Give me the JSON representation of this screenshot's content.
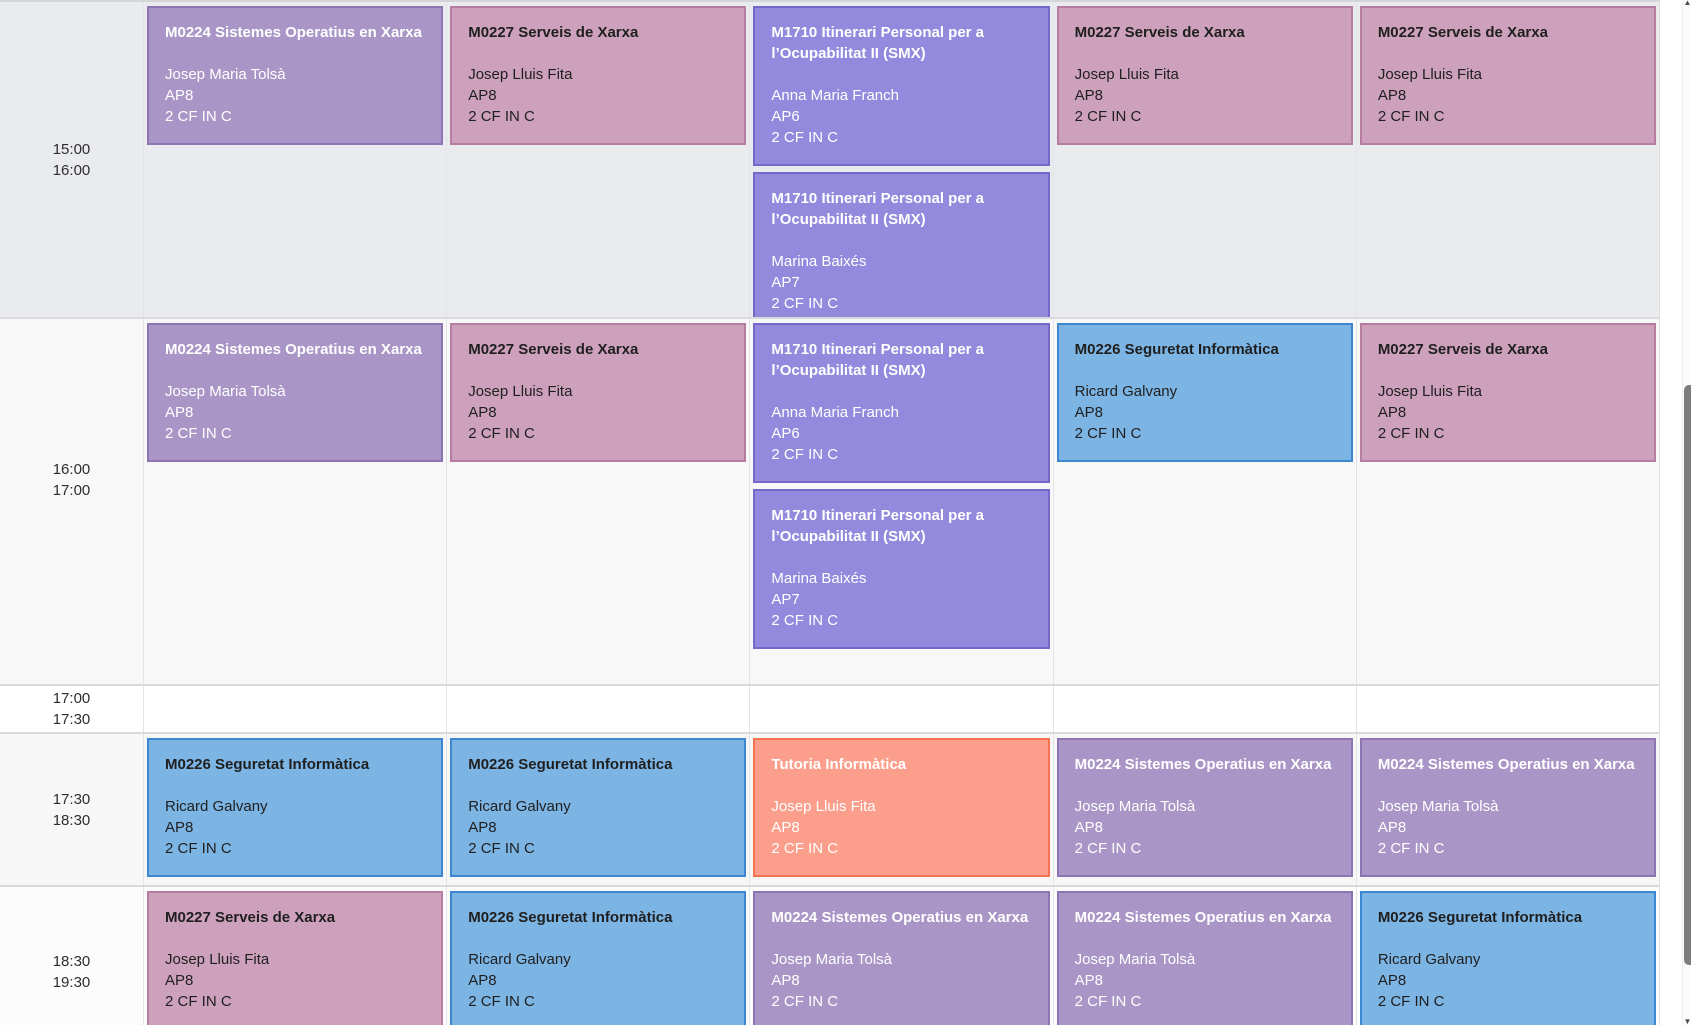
{
  "grid": {
    "rows": [
      {
        "start_time": "15:00",
        "end_time": "16:00",
        "bg": "#e9ebee",
        "columns": [
          [
            {
              "title": "M0224 Sistemes Operatius en Xarxa",
              "teacher": "Josep Maria Tolsà",
              "room": "AP8",
              "group": "2 CF IN C",
              "color": "purple"
            }
          ],
          [
            {
              "title": "M0227 Serveis de Xarxa",
              "teacher": "Josep Lluis Fita",
              "room": "AP8",
              "group": "2 CF IN C",
              "color": "pink"
            }
          ],
          [
            {
              "title": "M1710 Itinerari Personal per a l’Ocupabilitat II (SMX)",
              "teacher": "Anna Maria Franch",
              "room": "AP6",
              "group": "2 CF IN C",
              "color": "violet"
            },
            {
              "title": "M1710 Itinerari Personal per a l’Ocupabilitat II (SMX)",
              "teacher": "Marina Baixés",
              "room": "AP7",
              "group": "2 CF IN C",
              "color": "violet"
            }
          ],
          [
            {
              "title": "M0227 Serveis de Xarxa",
              "teacher": "Josep Lluis Fita",
              "room": "AP8",
              "group": "2 CF IN C",
              "color": "pink"
            }
          ],
          [
            {
              "title": "M0227 Serveis de Xarxa",
              "teacher": "Josep Lluis Fita",
              "room": "AP8",
              "group": "2 CF IN C",
              "color": "pink"
            }
          ]
        ]
      },
      {
        "start_time": "16:00",
        "end_time": "17:00",
        "bg": "#f8f8f8",
        "columns": [
          [
            {
              "title": "M0224 Sistemes Operatius en Xarxa",
              "teacher": "Josep Maria Tolsà",
              "room": "AP8",
              "group": "2 CF IN C",
              "color": "purple"
            }
          ],
          [
            {
              "title": "M0227 Serveis de Xarxa",
              "teacher": "Josep Lluis Fita",
              "room": "AP8",
              "group": "2 CF IN C",
              "color": "pink"
            }
          ],
          [
            {
              "title": "M1710 Itinerari Personal per a l’Ocupabilitat II (SMX)",
              "teacher": "Anna Maria Franch",
              "room": "AP6",
              "group": "2 CF IN C",
              "color": "violet"
            },
            {
              "title": "M1710 Itinerari Personal per a l’Ocupabilitat II (SMX)",
              "teacher": "Marina Baixés",
              "room": "AP7",
              "group": "2 CF IN C",
              "color": "violet"
            }
          ],
          [
            {
              "title": "M0226 Seguretat Informàtica",
              "teacher": "Ricard Galvany",
              "room": "AP8",
              "group": "2 CF IN C",
              "color": "blue"
            }
          ],
          [
            {
              "title": "M0227 Serveis de Xarxa",
              "teacher": "Josep Lluis Fita",
              "room": "AP8",
              "group": "2 CF IN C",
              "color": "pink"
            }
          ]
        ]
      },
      {
        "start_time": "17:00",
        "end_time": "17:30",
        "bg": "#ffffff",
        "columns": [
          [],
          [],
          [],
          [],
          []
        ]
      },
      {
        "start_time": "17:30",
        "end_time": "18:30",
        "bg": "#f7f7f7",
        "columns": [
          [
            {
              "title": "M0226 Seguretat Informàtica",
              "teacher": "Ricard Galvany",
              "room": "AP8",
              "group": "2 CF IN C",
              "color": "blue"
            }
          ],
          [
            {
              "title": "M0226 Seguretat Informàtica",
              "teacher": "Ricard Galvany",
              "room": "AP8",
              "group": "2 CF IN C",
              "color": "blue"
            }
          ],
          [
            {
              "title": "Tutoria Informàtica",
              "teacher": "Josep Lluis Fita",
              "room": "AP8",
              "group": "2 CF IN C",
              "color": "salmon"
            }
          ],
          [
            {
              "title": "M0224 Sistemes Operatius en Xarxa",
              "teacher": "Josep Maria Tolsà",
              "room": "AP8",
              "group": "2 CF IN C",
              "color": "purple"
            }
          ],
          [
            {
              "title": "M0224 Sistemes Operatius en Xarxa",
              "teacher": "Josep Maria Tolsà",
              "room": "AP8",
              "group": "2 CF IN C",
              "color": "purple"
            }
          ]
        ]
      },
      {
        "start_time": "18:30",
        "end_time": "19:30",
        "bg": "#fcfcfc",
        "columns": [
          [
            {
              "title": "M0227 Serveis de Xarxa",
              "teacher": "Josep Lluis Fita",
              "room": "AP8",
              "group": "2 CF IN C",
              "color": "pink"
            }
          ],
          [
            {
              "title": "M0226 Seguretat Informàtica",
              "teacher": "Ricard Galvany",
              "room": "AP8",
              "group": "2 CF IN C",
              "color": "blue"
            }
          ],
          [
            {
              "title": "M0224 Sistemes Operatius en Xarxa",
              "teacher": "Josep Maria Tolsà",
              "room": "AP8",
              "group": "2 CF IN C",
              "color": "purple"
            }
          ],
          [
            {
              "title": "M0224 Sistemes Operatius en Xarxa",
              "teacher": "Josep Maria Tolsà",
              "room": "AP8",
              "group": "2 CF IN C",
              "color": "purple"
            }
          ],
          [
            {
              "title": "M0226 Seguretat Informàtica",
              "teacher": "Ricard Galvany",
              "room": "AP8",
              "group": "2 CF IN C",
              "color": "blue"
            }
          ]
        ]
      }
    ]
  },
  "event_colors": {
    "purple": {
      "fill": "#a996c6",
      "border": "#8d74b2",
      "text": "#ffffff"
    },
    "pink": {
      "fill": "#cda1bb",
      "border": "#b77da1",
      "text": "#1f1f1f"
    },
    "violet": {
      "fill": "#948add",
      "border": "#7668cb",
      "text": "#ffffff"
    },
    "blue": {
      "fill": "#7cb4e4",
      "border": "#3c87cf",
      "text": "#1f1f1f"
    },
    "salmon": {
      "fill": "#fb9e8b",
      "border": "#f4734f",
      "text": "#ffffff"
    }
  },
  "scrollbar": {
    "up_arrow": "▲",
    "down_arrow": "▼"
  }
}
